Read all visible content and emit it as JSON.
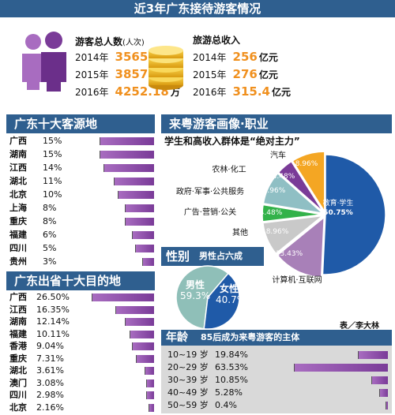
{
  "header": {
    "title": "近3年广东接待游客情况"
  },
  "visitors": {
    "title": "游客总人数",
    "title_unit": "(人次)",
    "unit": "万",
    "rows": [
      {
        "year": "2014年",
        "value": "3565"
      },
      {
        "year": "2015年",
        "value": "3857.4"
      },
      {
        "year": "2016年",
        "value": "4252.18"
      }
    ]
  },
  "income": {
    "title": "旅游总收入",
    "unit": "亿元",
    "rows": [
      {
        "year": "2014年",
        "value": "256"
      },
      {
        "year": "2015年",
        "value": "276"
      },
      {
        "year": "2016年",
        "value": "315.4"
      }
    ]
  },
  "sources": {
    "title": "广东十大客源地",
    "items": [
      {
        "name": "广西",
        "label": "15%",
        "value": 15
      },
      {
        "name": "湖南",
        "label": "15%",
        "value": 15
      },
      {
        "name": "江西",
        "label": "14%",
        "value": 14
      },
      {
        "name": "湖北",
        "label": "11%",
        "value": 11
      },
      {
        "name": "北京",
        "label": "10%",
        "value": 10
      },
      {
        "name": "上海",
        "label": "8%",
        "value": 8
      },
      {
        "name": "重庆",
        "label": "8%",
        "value": 8
      },
      {
        "name": "福建",
        "label": "6%",
        "value": 6
      },
      {
        "name": "四川",
        "label": "5%",
        "value": 5
      },
      {
        "name": "贵州",
        "label": "3%",
        "value": 3
      }
    ]
  },
  "destinations": {
    "title": "广东出省十大目的地",
    "items": [
      {
        "name": "广西",
        "label": "26.50%",
        "value": 26.5
      },
      {
        "name": "江西",
        "label": "16.35%",
        "value": 16.35
      },
      {
        "name": "湖南",
        "label": "12.14%",
        "value": 12.14
      },
      {
        "name": "福建",
        "label": "10.11%",
        "value": 10.11
      },
      {
        "name": "香港",
        "label": "9.04%",
        "value": 9.04
      },
      {
        "name": "重庆",
        "label": "7.31%",
        "value": 7.31
      },
      {
        "name": "湖北",
        "label": "3.61%",
        "value": 3.61
      },
      {
        "name": "澳门",
        "label": "3.08%",
        "value": 3.08
      },
      {
        "name": "四川",
        "label": "2.98%",
        "value": 2.98
      },
      {
        "name": "北京",
        "label": "2.16%",
        "value": 2.16
      }
    ]
  },
  "profile": {
    "title": "来粤游客画像·职业",
    "subtitle": "学生和高收入群体是“绝对主力”"
  },
  "gender": {
    "title": "性别",
    "subtitle": "男性占六成",
    "male_label": "男性",
    "male_value": "59.3%",
    "female_label": "女性",
    "female_value": "40.7%"
  },
  "credit": "表／李大林",
  "age": {
    "title": "年龄",
    "subtitle": "85后成为来粤游客的主体",
    "items": [
      {
        "name": "10~19 岁",
        "label": "19.84%",
        "value": 19.84
      },
      {
        "name": "20~29 岁",
        "label": "63.53%",
        "value": 63.53
      },
      {
        "name": "30~39 岁",
        "label": "10.85%",
        "value": 10.85
      },
      {
        "name": "40~49 岁",
        "label": "5.28%",
        "value": 5.28
      },
      {
        "name": "50~59 岁",
        "label": "0.4%",
        "value": 0.4
      }
    ]
  },
  "chart_data": [
    {
      "type": "bar",
      "title": "广东十大客源地",
      "categories": [
        "广西",
        "湖南",
        "江西",
        "湖北",
        "北京",
        "上海",
        "重庆",
        "福建",
        "四川",
        "贵州"
      ],
      "values": [
        15,
        15,
        14,
        11,
        10,
        8,
        8,
        6,
        5,
        3
      ]
    },
    {
      "type": "bar",
      "title": "广东出省十大目的地",
      "categories": [
        "广西",
        "江西",
        "湖南",
        "福建",
        "香港",
        "重庆",
        "湖北",
        "澳门",
        "四川",
        "北京"
      ],
      "values": [
        26.5,
        16.35,
        12.14,
        10.11,
        9.04,
        7.31,
        3.61,
        3.08,
        2.98,
        2.16
      ]
    },
    {
      "type": "pie",
      "title": "来粤游客画像·职业",
      "categories": [
        "教育·学生",
        "计算机·互联网",
        "其他",
        "广告·营销·公关",
        "政府·军事·公共服务",
        "农林·化工",
        "汽车"
      ],
      "values": [
        50.75,
        13.43,
        8.96,
        4.48,
        8.96,
        4.48,
        8.96
      ],
      "colors": [
        "#1f5aa8",
        "#a880b8",
        "#c9c9c9",
        "#33b24a",
        "#8fbfc4",
        "#7a3b98",
        "#f4a623"
      ]
    },
    {
      "type": "pie",
      "title": "性别",
      "categories": [
        "男性",
        "女性"
      ],
      "values": [
        59.3,
        40.7
      ],
      "colors": [
        "#8fbfb8",
        "#1f5aa8"
      ]
    },
    {
      "type": "bar",
      "title": "年龄",
      "categories": [
        "10~19 岁",
        "20~29 岁",
        "30~39 岁",
        "40~49 岁",
        "50~59 岁"
      ],
      "values": [
        19.84,
        63.53,
        10.85,
        5.28,
        0.4
      ]
    }
  ]
}
